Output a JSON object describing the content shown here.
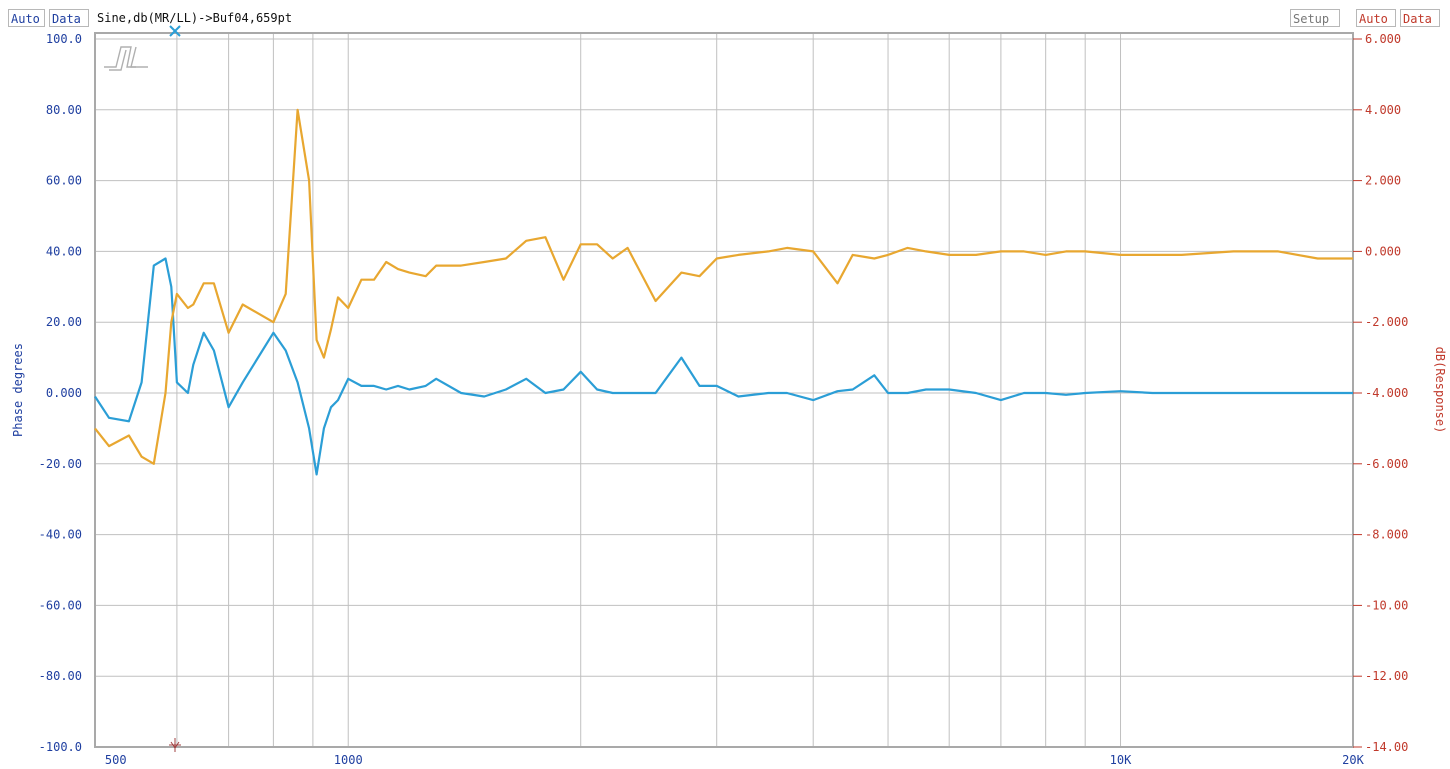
{
  "toolbar": {
    "left_auto": "Auto",
    "left_data": "Data",
    "title": "Sine,db(MR/LL)->Buf04,659pt",
    "setup": "Setup",
    "right_auto": "Auto",
    "right_data": "Data"
  },
  "colors": {
    "phase": "#2b9ed6",
    "response": "#e8a730",
    "grid": "#c0c0c0",
    "frame": "#a9a9a9",
    "left_axis": "#1f3fa0",
    "right_axis": "#c0392b"
  },
  "chart_data": {
    "type": "line",
    "x_scale": "log",
    "xlim": [
      470,
      20000
    ],
    "x_tick_values": [
      500,
      1000,
      10000,
      20000
    ],
    "x_tick_labels": [
      "500",
      "1000",
      "10K",
      "20K"
    ],
    "x_grid_values": [
      600,
      700,
      800,
      900,
      1000,
      2000,
      3000,
      4000,
      5000,
      6000,
      7000,
      8000,
      9000,
      10000
    ],
    "ylabel": "Phase degrees",
    "ylim": [
      -100,
      100
    ],
    "y_tick_values": [
      100,
      80,
      60,
      40,
      20,
      0,
      -20,
      -40,
      -60,
      -80,
      -100
    ],
    "y_tick_labels": [
      "100.0",
      "80.00",
      "60.00",
      "40.00",
      "20.00",
      "0.000",
      "-20.00",
      "-40.00",
      "-60.00",
      "-80.00",
      "-100.0"
    ],
    "y2label": "dB(Response)",
    "y2lim": [
      -14,
      6
    ],
    "y2_tick_values": [
      6,
      4,
      2,
      0,
      -2,
      -4,
      -6,
      -8,
      -10,
      -12,
      -14
    ],
    "y2_tick_labels": [
      "6.000",
      "4.000",
      "2.000",
      "0.000",
      "-2.000",
      "-4.000",
      "-6.000",
      "-8.000",
      "-10.00",
      "-12.00",
      "-14.00"
    ],
    "grid": true,
    "series": [
      {
        "axis": "left",
        "x": [
          470,
          490,
          520,
          540,
          560,
          580,
          590,
          600,
          620,
          630,
          650,
          670,
          700,
          730,
          800,
          830,
          860,
          890,
          910,
          930,
          950,
          970,
          1000,
          1040,
          1080,
          1120,
          1160,
          1200,
          1260,
          1300,
          1400,
          1500,
          1600,
          1700,
          1800,
          1900,
          2000,
          2100,
          2200,
          2300,
          2500,
          2700,
          2850,
          3000,
          3200,
          3500,
          3700,
          4000,
          4300,
          4500,
          4800,
          5000,
          5300,
          5600,
          6000,
          6500,
          7000,
          7500,
          8000,
          8500,
          9000,
          10000,
          11000,
          12000,
          14000,
          16000,
          18000,
          20000
        ],
        "y": [
          -1,
          -7,
          -8,
          3,
          36,
          38,
          30,
          3,
          0,
          8,
          17,
          12,
          -4,
          3,
          17,
          12,
          3,
          -10,
          -23,
          -10,
          -4,
          -2,
          4,
          2,
          2,
          1,
          2,
          1,
          2,
          4,
          0,
          -1,
          1,
          4,
          0,
          1,
          6,
          1,
          0,
          0,
          0,
          10,
          2,
          2,
          -1,
          0,
          0,
          -2,
          0.5,
          1,
          5,
          0,
          0,
          1,
          1,
          0,
          -2,
          0,
          0,
          -0.5,
          0,
          0.5,
          0,
          0,
          0,
          0,
          0,
          0
        ]
      },
      {
        "axis": "right",
        "x": [
          470,
          490,
          520,
          540,
          560,
          580,
          590,
          600,
          620,
          630,
          650,
          670,
          700,
          730,
          800,
          830,
          860,
          890,
          910,
          930,
          950,
          970,
          1000,
          1040,
          1080,
          1120,
          1160,
          1200,
          1260,
          1300,
          1400,
          1500,
          1600,
          1700,
          1800,
          1900,
          2000,
          2100,
          2200,
          2300,
          2500,
          2700,
          2850,
          3000,
          3200,
          3500,
          3700,
          4000,
          4300,
          4500,
          4800,
          5000,
          5300,
          5600,
          6000,
          6500,
          7000,
          7500,
          8000,
          8500,
          9000,
          10000,
          11000,
          12000,
          14000,
          16000,
          18000,
          20000
        ],
        "y": [
          -5,
          -5.5,
          -5.2,
          -5.8,
          -6,
          -4,
          -2,
          -1.2,
          -1.6,
          -1.5,
          -0.9,
          -0.9,
          -2.3,
          -1.5,
          -2,
          -1.2,
          4,
          2,
          -2.5,
          -3,
          -2.2,
          -1.3,
          -1.6,
          -0.8,
          -0.8,
          -0.3,
          -0.5,
          -0.6,
          -0.7,
          -0.4,
          -0.4,
          -0.3,
          -0.2,
          0.3,
          0.4,
          -0.8,
          0.2,
          0.2,
          -0.2,
          0.1,
          -1.4,
          -0.6,
          -0.7,
          -0.2,
          -0.1,
          0,
          0.1,
          0,
          -0.9,
          -0.1,
          -0.2,
          -0.1,
          0.1,
          0,
          -0.1,
          -0.1,
          0,
          0,
          -0.1,
          0,
          0,
          -0.1,
          -0.1,
          -0.1,
          0,
          0,
          -0.2,
          -0.2
        ]
      }
    ]
  }
}
